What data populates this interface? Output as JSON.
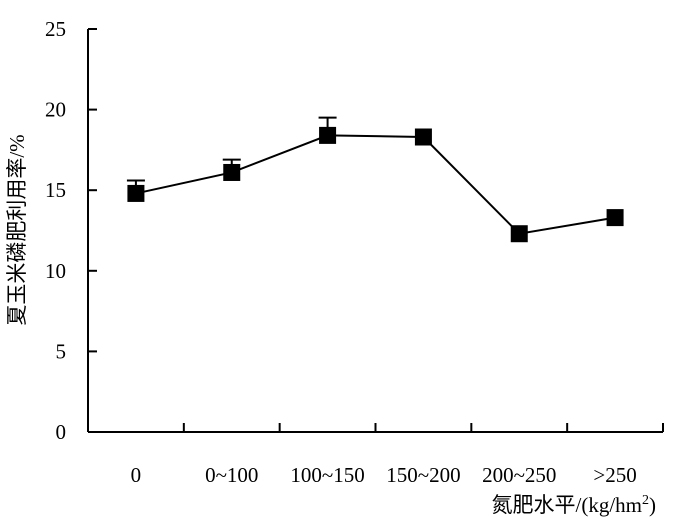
{
  "chart_data": {
    "type": "line",
    "title": "",
    "xlabel": "氮肥水平/(kg/hm²)",
    "xlabel_main": "氮肥水平/(kg/hm",
    "xlabel_sup": "2",
    "xlabel_end": ")",
    "ylabel": "夏玉米磷肥利用率/%",
    "categories": [
      "0",
      "0~100",
      "100~150",
      "150~200",
      "200~250",
      ">250"
    ],
    "ylim": [
      0,
      25
    ],
    "yticks": [
      0,
      5,
      10,
      15,
      20,
      25
    ],
    "ytick_labels": [
      "0",
      "5",
      "10",
      "15",
      "20",
      "25"
    ],
    "series": [
      {
        "values": [
          14.8,
          16.1,
          18.4,
          18.3,
          12.3,
          13.3
        ],
        "error": [
          0.8,
          0.8,
          1.1,
          0.0,
          0.0,
          0.0
        ]
      }
    ],
    "marker": "square",
    "color": "#000000",
    "grid": false,
    "legend": "none"
  }
}
